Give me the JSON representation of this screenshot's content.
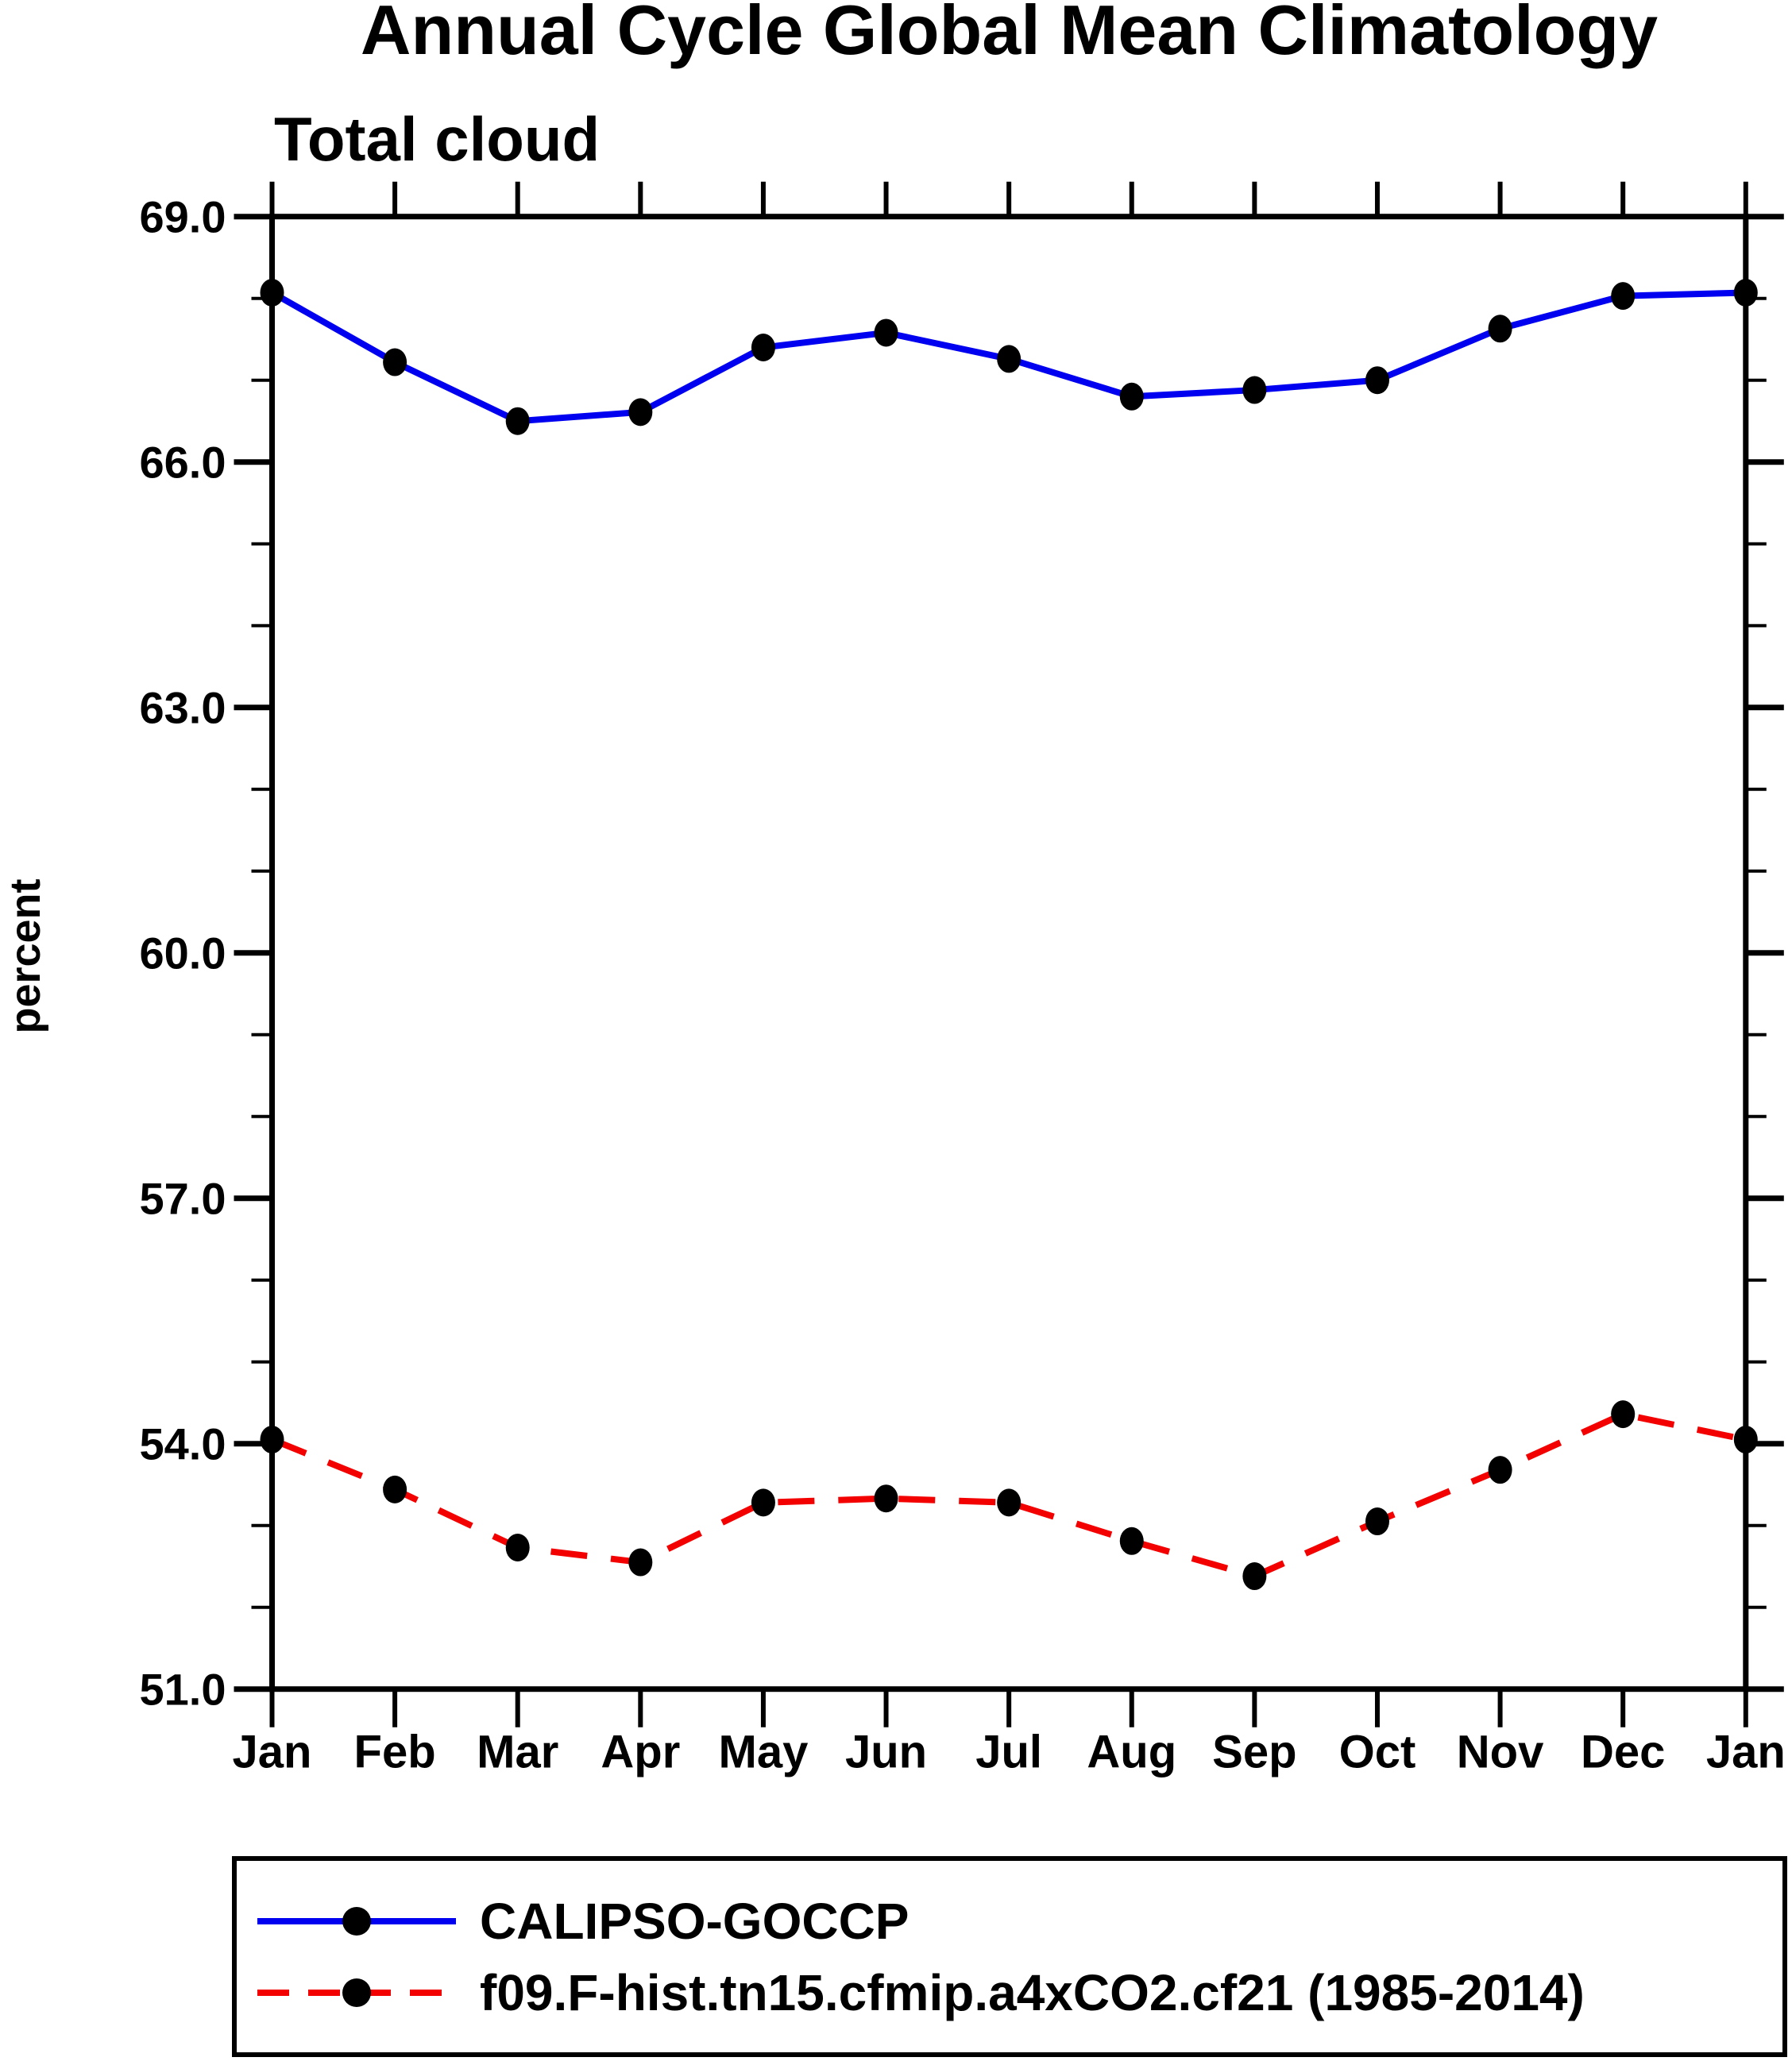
{
  "chart_data": {
    "type": "line",
    "title": "Annual Cycle Global Mean Climatology",
    "subtitle": "Total cloud",
    "xlabel": "",
    "ylabel": "percent",
    "categories": [
      "Jan",
      "Feb",
      "Mar",
      "Apr",
      "May",
      "Jun",
      "Jul",
      "Aug",
      "Sep",
      "Oct",
      "Nov",
      "Dec",
      "Jan"
    ],
    "series": [
      {
        "name": "CALIPSO-GOCCP",
        "color": "#0000f0",
        "line_style": "solid",
        "marker": "filled-circle",
        "marker_color": "#000000",
        "values": [
          68.07,
          67.22,
          66.5,
          66.61,
          67.4,
          67.58,
          67.26,
          66.8,
          66.88,
          67.0,
          67.63,
          68.03,
          68.07
        ]
      },
      {
        "name": "f09.F-hist.tn15.cfmip.a4xCO2.cf21 (1985-2014)",
        "color": "#f30000",
        "line_style": "dashed",
        "marker": "filled-circle",
        "marker_color": "#000000",
        "values": [
          54.05,
          53.44,
          52.73,
          52.55,
          53.28,
          53.33,
          53.28,
          52.81,
          52.38,
          53.05,
          53.68,
          54.36,
          54.05
        ]
      }
    ],
    "ylim": [
      51.0,
      69.0
    ],
    "ytick_major": [
      51.0,
      54.0,
      57.0,
      60.0,
      63.0,
      66.0,
      69.0
    ],
    "ytick_minor_step": 1.0,
    "ytick_label_format": "one-decimal",
    "grid": false,
    "axis_color": "#000000",
    "legend_position": "bottom"
  }
}
